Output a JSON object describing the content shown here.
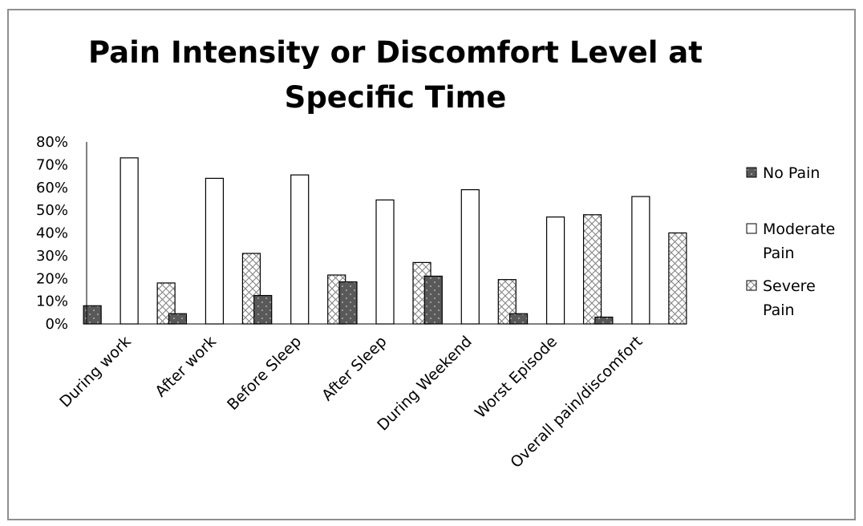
{
  "chart_data": {
    "type": "bar",
    "title_lines": [
      "Pain Intensity or Discomfort Level at",
      "Specific Time"
    ],
    "categories": [
      "During work",
      "After work",
      "Before Sleep",
      "After Sleep",
      "During Weekend",
      "Worst Episode",
      "Overall pain/discomfort"
    ],
    "series": [
      {
        "name": "No Pain",
        "name_lines": [
          "No Pain"
        ],
        "values": [
          0.08,
          0.045,
          0.125,
          0.185,
          0.21,
          0.045,
          0.03
        ],
        "color": "#595959",
        "pattern": "dots"
      },
      {
        "name": "Moderate Pain",
        "name_lines": [
          "Moderate",
          "Pain"
        ],
        "values": [
          0.73,
          0.64,
          0.655,
          0.545,
          0.59,
          0.47,
          0.56
        ],
        "color": "#ffffff",
        "pattern": "none"
      },
      {
        "name": "Severe Pain",
        "name_lines": [
          "Severe",
          "Pain"
        ],
        "values": [
          0.18,
          0.31,
          0.215,
          0.27,
          0.195,
          0.48,
          0.4
        ],
        "color": "#ffffff",
        "pattern": "crosshatch"
      }
    ],
    "y_ticks": [
      "0%",
      "10%",
      "20%",
      "30%",
      "40%",
      "50%",
      "60%",
      "70%",
      "80%"
    ],
    "ylim": [
      0,
      0.8
    ],
    "grid": false,
    "legend": "right"
  }
}
